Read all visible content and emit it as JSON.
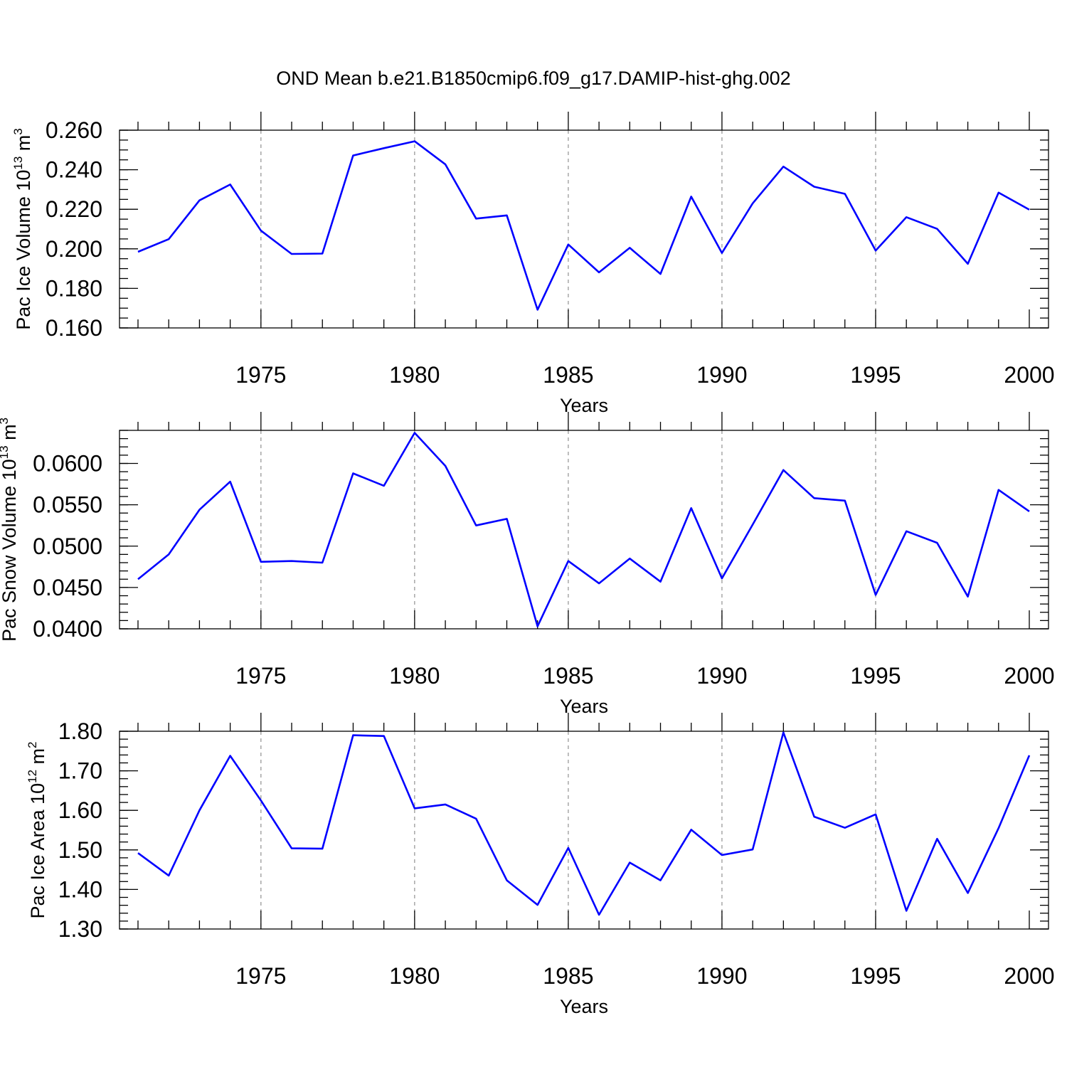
{
  "title": "OND Mean b.e21.B1850cmip6.f09_g17.DAMIP-hist-ghg.002",
  "colors": {
    "series": "#0000ff",
    "grid": "#999999",
    "axis": "#000000"
  },
  "chart_data": [
    {
      "type": "line",
      "ylabel": {
        "text": "Pac Ice Volume 10",
        "sup1": "13",
        "mid": " m",
        "sup2": "3"
      },
      "xlabel": "Years",
      "xlim": [
        1971,
        2000
      ],
      "ylim": [
        0.16,
        0.26
      ],
      "yticks": [
        "0.160",
        "0.180",
        "0.200",
        "0.220",
        "0.240",
        "0.260"
      ],
      "xticks": [
        "1975",
        "1980",
        "1985",
        "1990",
        "1995",
        "2000"
      ],
      "grid": "vertical dashed at major x ticks",
      "x": [
        1971,
        1972,
        1973,
        1974,
        1975,
        1976,
        1977,
        1978,
        1979,
        1980,
        1981,
        1982,
        1983,
        1984,
        1985,
        1986,
        1987,
        1988,
        1989,
        1990,
        1991,
        1992,
        1993,
        1994,
        1995,
        1996,
        1997,
        1998,
        1999,
        2000
      ],
      "values": [
        0.1985,
        0.2049,
        0.2245,
        0.2325,
        0.2092,
        0.1974,
        0.1976,
        0.2472,
        0.2509,
        0.2544,
        0.2427,
        0.2153,
        0.2169,
        0.1692,
        0.2022,
        0.1881,
        0.2005,
        0.1873,
        0.2264,
        0.1979,
        0.223,
        0.2416,
        0.2314,
        0.2278,
        0.1991,
        0.216,
        0.2101,
        0.1924,
        0.2284,
        0.2198
      ]
    },
    {
      "type": "line",
      "ylabel": {
        "text": "Pac Snow Volume 10",
        "sup1": "13",
        "mid": " m",
        "sup2": "3"
      },
      "xlabel": "Years",
      "xlim": [
        1971,
        2000
      ],
      "ylim": [
        0.04,
        0.064
      ],
      "yticks": [
        "0.0400",
        "0.0450",
        "0.0500",
        "0.0550",
        "0.0600"
      ],
      "xticks": [
        "1975",
        "1980",
        "1985",
        "1990",
        "1995",
        "2000"
      ],
      "grid": "vertical dashed at major x ticks",
      "x": [
        1971,
        1972,
        1973,
        1974,
        1975,
        1976,
        1977,
        1978,
        1979,
        1980,
        1981,
        1982,
        1983,
        1984,
        1985,
        1986,
        1987,
        1988,
        1989,
        1990,
        1991,
        1992,
        1993,
        1994,
        1995,
        1996,
        1997,
        1998,
        1999,
        2000
      ],
      "values": [
        0.046,
        0.049,
        0.0544,
        0.0578,
        0.0481,
        0.0482,
        0.048,
        0.0588,
        0.0573,
        0.0637,
        0.0597,
        0.0525,
        0.0533,
        0.0403,
        0.0482,
        0.0455,
        0.0485,
        0.0457,
        0.0546,
        0.0461,
        0.0526,
        0.0592,
        0.0558,
        0.0555,
        0.0441,
        0.0518,
        0.0504,
        0.0439,
        0.0568,
        0.0542
      ]
    },
    {
      "type": "line",
      "ylabel": {
        "text": "Pac Ice Area 10",
        "sup1": "12",
        "mid": " m",
        "sup2": "2"
      },
      "xlabel": "Years",
      "xlim": [
        1971,
        2000
      ],
      "ylim": [
        1.3,
        1.8
      ],
      "yticks": [
        "1.30",
        "1.40",
        "1.50",
        "1.60",
        "1.70",
        "1.80"
      ],
      "xticks": [
        "1975",
        "1980",
        "1985",
        "1990",
        "1995",
        "2000"
      ],
      "grid": "vertical dashed at major x ticks",
      "x": [
        1971,
        1972,
        1973,
        1974,
        1975,
        1976,
        1977,
        1978,
        1979,
        1980,
        1981,
        1982,
        1983,
        1984,
        1985,
        1986,
        1987,
        1988,
        1989,
        1990,
        1991,
        1992,
        1993,
        1994,
        1995,
        1996,
        1997,
        1998,
        1999,
        2000
      ],
      "values": [
        1.492,
        1.435,
        1.6,
        1.738,
        1.625,
        1.504,
        1.503,
        1.79,
        1.788,
        1.605,
        1.615,
        1.579,
        1.423,
        1.361,
        1.505,
        1.336,
        1.468,
        1.423,
        1.551,
        1.487,
        1.501,
        1.797,
        1.584,
        1.556,
        1.59,
        1.346,
        1.528,
        1.391,
        1.555,
        1.739
      ]
    }
  ]
}
